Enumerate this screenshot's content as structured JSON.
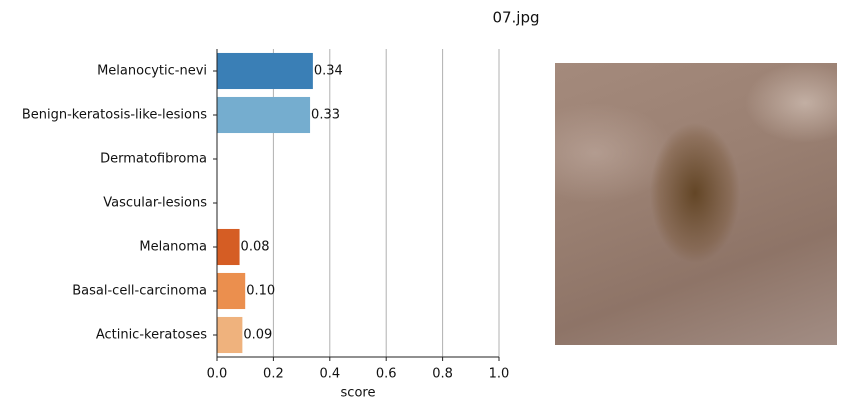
{
  "chart_data": {
    "type": "barh",
    "title": "07.jpg",
    "xlabel": "score",
    "categories": [
      "Melanocytic-nevi",
      "Benign-keratosis-like-lesions",
      "Dermatofibroma",
      "Vascular-lesions",
      "Melanoma",
      "Basal-cell-carcinoma",
      "Actinic-keratoses"
    ],
    "values": [
      0.34,
      0.33,
      null,
      null,
      0.08,
      0.1,
      0.09
    ],
    "value_labels": [
      "0.34",
      "0.33",
      null,
      null,
      "0.08",
      "0.10",
      "0.09"
    ],
    "colors": [
      "#3a7fb6",
      "#75adcf",
      null,
      null,
      "#d55d24",
      "#eb8f4e",
      "#efb27d"
    ],
    "xlim": [
      0,
      1
    ],
    "xticks": [
      {
        "value": 0,
        "label": "0.0"
      },
      0.2,
      0.4,
      0.6,
      0.8,
      {
        "value": 1,
        "label": "1.0"
      }
    ],
    "grid": "x"
  }
}
